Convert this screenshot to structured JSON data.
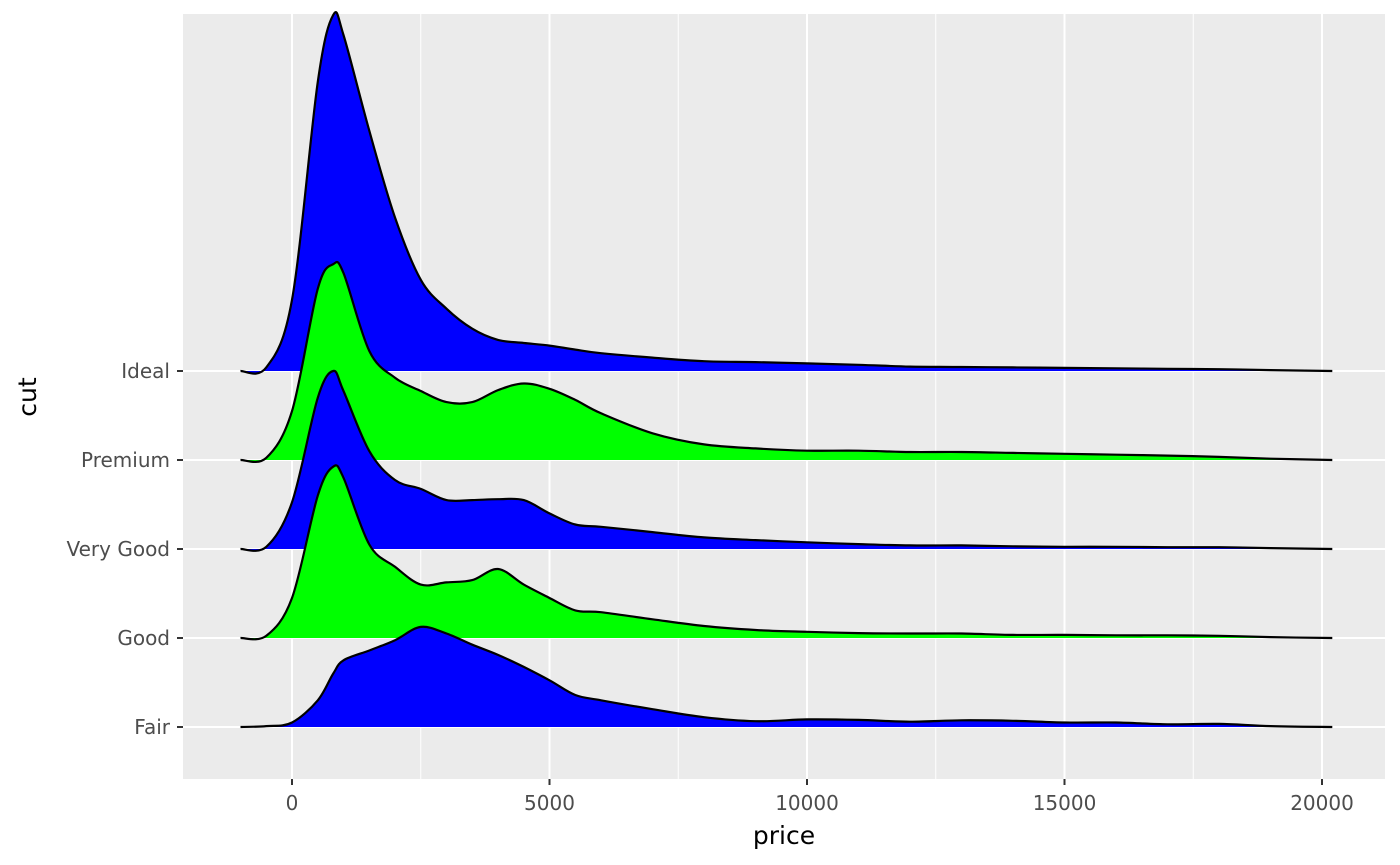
{
  "chart_data": {
    "type": "ridgeline",
    "xlabel": "price",
    "ylabel": "cut",
    "xlim": [
      -2100,
      21500
    ],
    "x_ticks": [
      0,
      5000,
      10000,
      15000,
      20000
    ],
    "x_tick_labels": [
      "0",
      "5000",
      "10000",
      "15000",
      "20000"
    ],
    "categories": [
      "Fair",
      "Good",
      "Very Good",
      "Premium",
      "Ideal"
    ],
    "grid": true,
    "legend": "none",
    "fill_colors": [
      "#0000ff",
      "#00ff00",
      "#0000ff",
      "#00ff00",
      "#0000ff"
    ],
    "background_color": "#ebebeb",
    "gridline_color": "#ffffff",
    "outline_color": "#000000",
    "max_relative_height": 4.0,
    "x": [
      -1000,
      -500,
      0,
      500,
      800,
      1000,
      1500,
      2000,
      2500,
      3000,
      3500,
      4000,
      4500,
      5000,
      5500,
      6000,
      7000,
      8000,
      9000,
      10000,
      11000,
      12000,
      13000,
      14000,
      15000,
      16000,
      17000,
      18000,
      19000,
      20200
    ],
    "series": [
      {
        "name": "Fair",
        "values": [
          0,
          0.02,
          0.1,
          0.6,
          1.2,
          1.5,
          1.72,
          1.95,
          2.25,
          2.1,
          1.85,
          1.62,
          1.35,
          1.05,
          0.72,
          0.6,
          0.4,
          0.22,
          0.13,
          0.17,
          0.16,
          0.12,
          0.15,
          0.14,
          0.1,
          0.1,
          0.06,
          0.07,
          0.02,
          0
        ]
      },
      {
        "name": "Good",
        "values": [
          0,
          0.05,
          0.9,
          3.2,
          3.85,
          3.6,
          2.1,
          1.6,
          1.2,
          1.25,
          1.3,
          1.55,
          1.2,
          0.9,
          0.62,
          0.58,
          0.42,
          0.27,
          0.18,
          0.14,
          0.11,
          0.1,
          0.1,
          0.07,
          0.07,
          0.06,
          0.06,
          0.05,
          0.02,
          0
        ]
      },
      {
        "name": "Very Good",
        "values": [
          0,
          0.05,
          1.05,
          3.4,
          4.0,
          3.55,
          2.2,
          1.55,
          1.35,
          1.1,
          1.1,
          1.12,
          1.1,
          0.8,
          0.55,
          0.5,
          0.38,
          0.26,
          0.2,
          0.15,
          0.11,
          0.08,
          0.08,
          0.06,
          0.05,
          0.05,
          0.04,
          0.04,
          0.02,
          0
        ]
      },
      {
        "name": "Premium",
        "values": [
          0,
          0.05,
          1.1,
          3.85,
          4.4,
          4.2,
          2.45,
          1.85,
          1.55,
          1.3,
          1.3,
          1.57,
          1.72,
          1.6,
          1.35,
          1.05,
          0.6,
          0.35,
          0.26,
          0.21,
          0.21,
          0.18,
          0.18,
          0.16,
          0.14,
          0.12,
          0.1,
          0.07,
          0.03,
          0
        ]
      },
      {
        "name": "Ideal",
        "values": [
          0,
          0.08,
          1.6,
          6.5,
          8.0,
          7.55,
          5.4,
          3.45,
          2.05,
          1.4,
          0.95,
          0.7,
          0.63,
          0.57,
          0.48,
          0.4,
          0.3,
          0.22,
          0.2,
          0.17,
          0.14,
          0.1,
          0.09,
          0.08,
          0.07,
          0.06,
          0.05,
          0.04,
          0.02,
          0
        ]
      }
    ]
  }
}
